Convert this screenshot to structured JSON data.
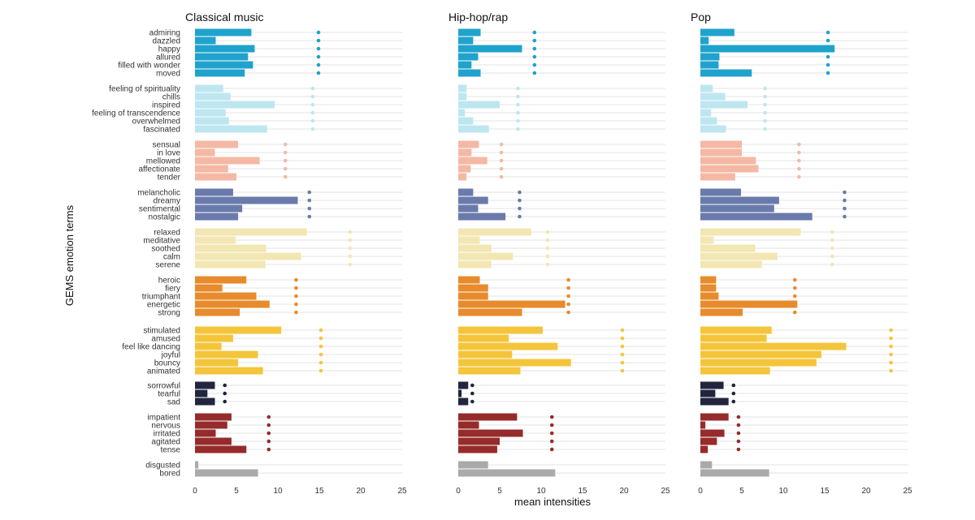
{
  "chart_data": {
    "type": "bar",
    "orientation": "horizontal",
    "ylabel": "GEMS emotion terms",
    "xlabel": "mean intensities",
    "xlim": [
      0,
      25
    ],
    "xticks": [
      "0",
      "5",
      "10",
      "15",
      "20",
      "25"
    ],
    "grid": true,
    "legend": "none",
    "group_colors": {
      "1": "#1fa3cc",
      "2": "#bde6f0",
      "3": "#f5b8a4",
      "4": "#6a7bab",
      "5": "#f2e6b2",
      "6": "#e88b2c",
      "7": "#f4c53b",
      "8": "#22253d",
      "9": "#962b2b",
      "10": "#aaaaaa"
    },
    "groups": [
      [
        "admiring",
        "dazzled",
        "happy",
        "allured",
        "filled with wonder",
        "moved"
      ],
      [
        "feeling of spirituality",
        "chills",
        "inspired",
        "feeling of transcendence",
        "overwhelmed",
        "fascinated"
      ],
      [
        "sensual",
        "in love",
        "mellowed",
        "affectionate",
        "tender"
      ],
      [
        "melancholic",
        "dreamy",
        "sentimental",
        "nostalgic"
      ],
      [
        "relaxed",
        "meditative",
        "soothed",
        "calm",
        "serene"
      ],
      [
        "heroic",
        "fiery",
        "triumphant",
        "energetic",
        "strong"
      ],
      [
        "stimulated",
        "amused",
        "feel like dancing",
        "joyful",
        "bouncy",
        "animated"
      ],
      [
        "sorrowful",
        "tearful",
        "sad"
      ],
      [
        "impatient",
        "nervous",
        "irritated",
        "agitated",
        "tense"
      ],
      [
        "disgusted",
        "bored"
      ]
    ],
    "panels": [
      {
        "title": "Classical music",
        "values": [
          [
            6.8,
            2.5,
            7.2,
            6.4,
            7.0,
            6.0
          ],
          [
            3.4,
            4.3,
            9.6,
            3.7,
            4.1,
            8.7
          ],
          [
            5.2,
            2.4,
            7.8,
            4.0,
            5.0
          ],
          [
            4.6,
            12.4,
            5.7,
            5.2
          ],
          [
            13.5,
            4.9,
            8.6,
            12.8,
            8.5
          ],
          [
            6.2,
            3.3,
            7.4,
            9.0,
            5.4
          ],
          [
            10.4,
            4.6,
            3.2,
            7.6,
            5.2,
            8.2
          ],
          [
            2.4,
            1.5,
            2.4
          ],
          [
            4.4,
            3.9,
            2.5,
            4.4,
            6.2
          ],
          [
            0.4,
            7.6
          ]
        ],
        "dots": [
          14.9,
          14.2,
          10.9,
          13.8,
          18.7,
          12.2,
          15.2,
          3.6,
          8.9,
          null
        ]
      },
      {
        "title": "Hip-hop/rap",
        "values": [
          [
            2.7,
            1.8,
            7.7,
            2.4,
            1.6,
            2.7
          ],
          [
            1.0,
            1.0,
            5.0,
            0.8,
            1.8,
            3.7
          ],
          [
            2.5,
            1.6,
            3.5,
            1.5,
            1.0
          ],
          [
            1.8,
            3.6,
            2.4,
            5.7
          ],
          [
            8.8,
            2.6,
            4.0,
            6.6,
            4.0
          ],
          [
            2.6,
            3.6,
            3.6,
            12.9,
            7.7
          ],
          [
            10.2,
            6.1,
            12.0,
            6.5,
            13.6,
            7.5
          ],
          [
            1.2,
            0.4,
            1.2
          ],
          [
            7.1,
            2.5,
            7.8,
            5.0,
            4.7
          ],
          [
            3.6,
            11.7
          ]
        ],
        "dots": [
          9.2,
          7.2,
          5.2,
          7.4,
          10.8,
          13.3,
          19.8,
          1.7,
          11.3,
          null
        ]
      },
      {
        "title": "Pop",
        "values": [
          [
            4.1,
            1.0,
            16.2,
            2.3,
            2.2,
            6.2
          ],
          [
            1.5,
            3.0,
            5.7,
            1.3,
            2.0,
            3.1
          ],
          [
            5.0,
            5.0,
            6.7,
            7.0,
            4.2
          ],
          [
            4.9,
            9.5,
            8.9,
            13.5
          ],
          [
            12.1,
            1.6,
            6.6,
            9.3,
            7.4
          ],
          [
            1.9,
            1.9,
            2.2,
            11.7,
            5.1
          ],
          [
            8.6,
            8.0,
            17.6,
            14.6,
            14.0,
            8.4
          ],
          [
            2.8,
            1.8,
            3.4
          ],
          [
            3.4,
            0.6,
            2.9,
            2.0,
            0.9
          ],
          [
            1.4,
            8.3
          ]
        ],
        "dots": [
          15.4,
          7.8,
          11.9,
          17.4,
          15.9,
          11.4,
          23.0,
          4.0,
          4.6,
          null
        ]
      }
    ]
  }
}
